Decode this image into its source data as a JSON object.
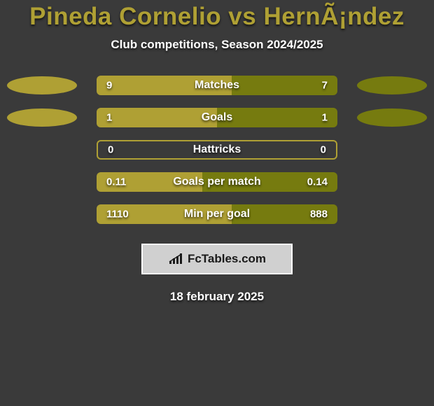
{
  "background_color": "#3a3a3a",
  "title": {
    "text": "Pineda Cornelio vs HernÃ¡ndez",
    "color": "#afa034",
    "fontsize": 35
  },
  "subtitle": {
    "text": "Club competitions, Season 2024/2025",
    "color": "#ffffff",
    "fontsize": 17
  },
  "bar_colors": {
    "left": "#afa034",
    "right": "#767b0f",
    "single_outline_left": "#afa034"
  },
  "label_fontsize": 16,
  "value_fontsize": 15,
  "ellipse": {
    "width": 100,
    "height": 26,
    "left_color": "#afa034",
    "right_color": "#767b0f"
  },
  "rows": [
    {
      "label": "Matches",
      "left_value": "9",
      "right_value": "7",
      "left_fill_pct": 56,
      "right_fill_pct": 44,
      "show_ellipses": true,
      "ellipse_label": null,
      "fill_mode": "split"
    },
    {
      "label": "Goals",
      "left_value": "1",
      "right_value": "1",
      "left_fill_pct": 50,
      "right_fill_pct": 50,
      "show_ellipses": true,
      "ellipse_label": null,
      "fill_mode": "split"
    },
    {
      "label": "Hattricks",
      "left_value": "0",
      "right_value": "0",
      "left_fill_pct": 0,
      "right_fill_pct": 0,
      "show_ellipses": false,
      "fill_mode": "outline"
    },
    {
      "label": "Goals per match",
      "left_value": "0.11",
      "right_value": "0.14",
      "left_fill_pct": 44,
      "right_fill_pct": 56,
      "show_ellipses": false,
      "fill_mode": "split"
    },
    {
      "label": "Min per goal",
      "left_value": "1110",
      "right_value": "888",
      "left_fill_pct": 56,
      "right_fill_pct": 44,
      "show_ellipses": false,
      "fill_mode": "split"
    }
  ],
  "brand": {
    "icon_color": "#1a1a1a",
    "text": "FcTables.com",
    "box_bg": "#d0d0d0"
  },
  "date": {
    "text": "18 february 2025",
    "color": "#ffffff",
    "fontsize": 17
  }
}
